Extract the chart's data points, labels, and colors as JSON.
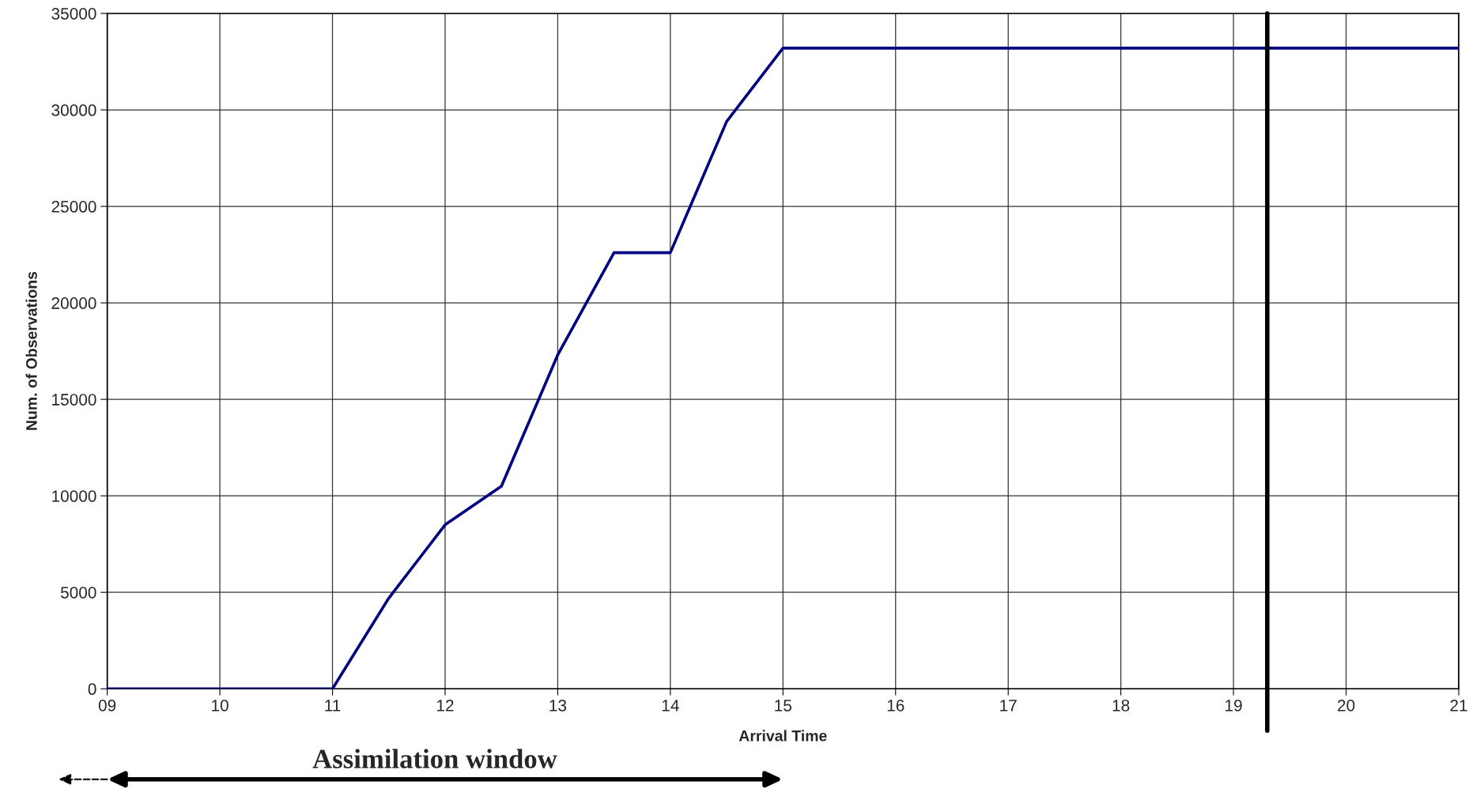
{
  "chart_data": {
    "type": "line",
    "xlabel": "Arrival Time",
    "ylabel": "Num. of Observations",
    "x": [
      9,
      11,
      11.5,
      12,
      12.5,
      13,
      13.5,
      14,
      14.5,
      15,
      21
    ],
    "series": [
      {
        "color": "#000080",
        "values": [
          0,
          0,
          4700,
          8500,
          10500,
          17300,
          22600,
          22600,
          29400,
          33200,
          33200
        ]
      }
    ],
    "xlim": [
      9,
      21
    ],
    "xticks": [
      {
        "value": 9,
        "label": "09"
      },
      10,
      11,
      12,
      13,
      14,
      15,
      16,
      17,
      18,
      19,
      20,
      21
    ],
    "ylim": [
      0,
      35000
    ],
    "yticks": [
      0,
      5000,
      10000,
      15000,
      20000,
      25000,
      30000,
      35000
    ],
    "ref_lines": [
      {
        "axis": "x",
        "value": 19.3,
        "color": "#000000"
      }
    ],
    "annotations": [
      "Assimilation window"
    ],
    "grid": true,
    "marker": "none",
    "line_style": "solid",
    "legend": false
  }
}
